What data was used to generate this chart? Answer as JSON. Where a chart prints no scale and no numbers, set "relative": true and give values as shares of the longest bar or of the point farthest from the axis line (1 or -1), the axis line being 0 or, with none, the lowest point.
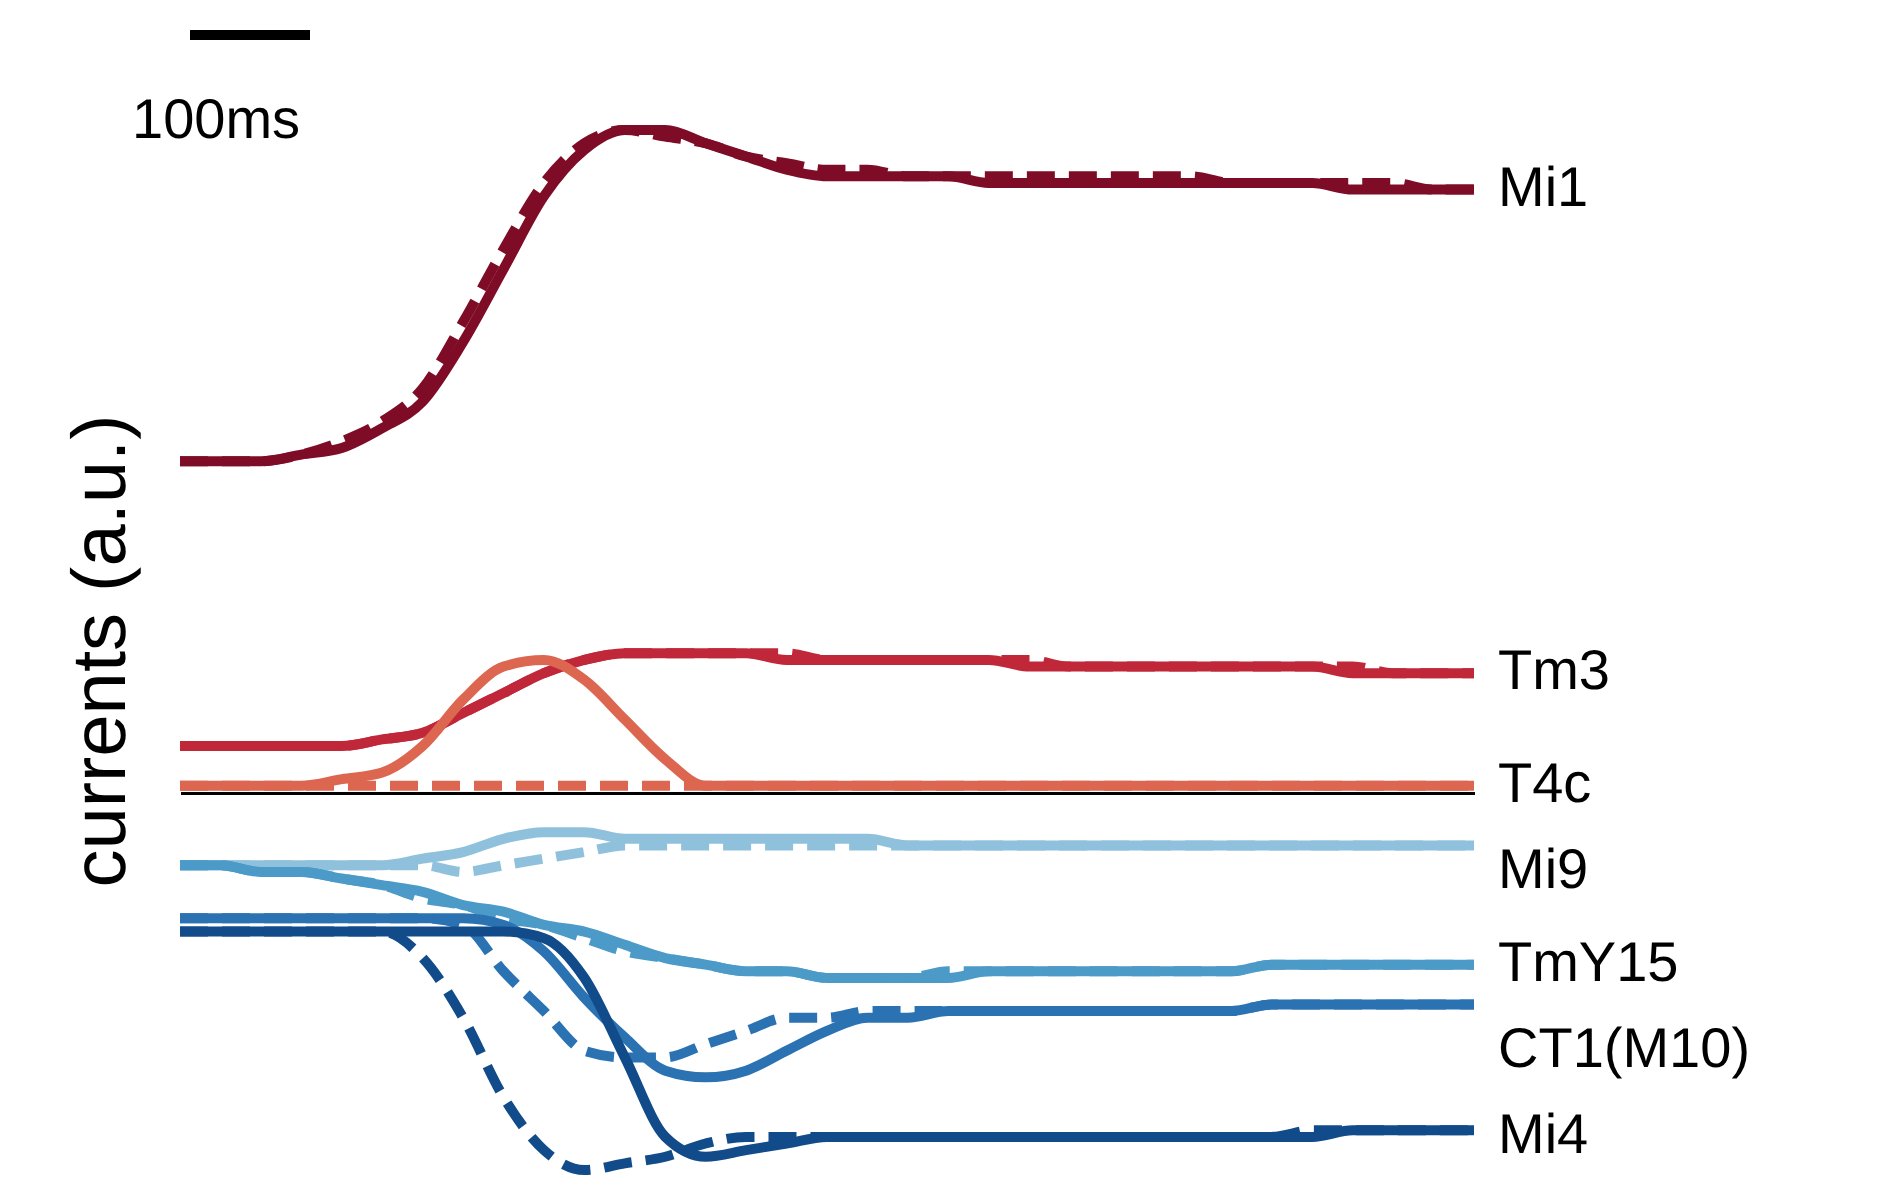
{
  "chart_data": {
    "type": "line",
    "relative": true,
    "ylabel": "currents (a.u.)",
    "annotations": [
      "100ms"
    ],
    "categories": [
      null,
      null,
      null,
      null,
      null,
      null,
      null,
      null,
      null,
      null,
      null,
      null,
      null,
      null,
      null,
      null,
      null,
      null,
      null,
      null,
      null,
      null,
      null,
      null,
      null,
      null,
      null,
      null,
      null,
      null,
      null,
      null,
      null
    ],
    "series": [
      {
        "name": "Mi1",
        "color": "#7f0c27",
        "line_style": "solid",
        "values": [
          0.5,
          0.5,
          0.5,
          0.51,
          0.52,
          0.55,
          0.59,
          0.68,
          0.79,
          0.9,
          0.97,
          1,
          1,
          0.98,
          0.96,
          0.94,
          0.93,
          0.93,
          0.93,
          0.93,
          0.92,
          0.92,
          0.92,
          0.92,
          0.92,
          0.92,
          0.92,
          0.92,
          0.92,
          0.91,
          0.91,
          0.91,
          0.91
        ]
      },
      {
        "color": "#7f0c27",
        "line_style": "dashed",
        "values": [
          0.5,
          0.5,
          0.5,
          0.51,
          0.53,
          0.56,
          0.61,
          0.71,
          0.82,
          0.92,
          0.98,
          1,
          0.99,
          0.98,
          0.96,
          0.95,
          0.94,
          0.94,
          0.93,
          0.93,
          0.93,
          0.93,
          0.93,
          0.93,
          0.93,
          0.93,
          0.92,
          0.92,
          0.92,
          0.92,
          0.92,
          0.91,
          0.91
        ]
      },
      {
        "name": "Tm3",
        "color": "#c0283a",
        "line_style": "solid",
        "values": [
          0.07,
          0.07,
          0.07,
          0.07,
          0.07,
          0.08,
          0.09,
          0.12,
          0.15,
          0.18,
          0.2,
          0.21,
          0.21,
          0.21,
          0.21,
          0.2,
          0.2,
          0.2,
          0.2,
          0.2,
          0.2,
          0.19,
          0.19,
          0.19,
          0.19,
          0.19,
          0.19,
          0.19,
          0.19,
          0.18,
          0.18,
          0.18,
          0.18
        ]
      },
      {
        "color": "#c0283a",
        "line_style": "dashed",
        "values": [
          0.07,
          0.07,
          0.07,
          0.07,
          0.07,
          0.08,
          0.09,
          0.12,
          0.15,
          0.18,
          0.2,
          0.21,
          0.21,
          0.21,
          0.21,
          0.21,
          0.2,
          0.2,
          0.2,
          0.2,
          0.2,
          0.2,
          0.19,
          0.19,
          0.19,
          0.19,
          0.19,
          0.19,
          0.19,
          0.19,
          0.18,
          0.18,
          0.18
        ]
      },
      {
        "name": "T4c",
        "color": "#dc6650",
        "line_style": "solid",
        "values": [
          0.01,
          0.01,
          0.01,
          0.01,
          0.02,
          0.03,
          0.07,
          0.14,
          0.19,
          0.2,
          0.17,
          0.11,
          0.05,
          0.01,
          0.01,
          0.01,
          0.01,
          0.01,
          0.01,
          0.01,
          0.01,
          0.01,
          0.01,
          0.01,
          0.01,
          0.01,
          0.01,
          0.01,
          0.01,
          0.01,
          0.01,
          0.01,
          0.01
        ]
      },
      {
        "color": "#dc6650",
        "line_style": "dashed",
        "values": [
          0.01,
          0.01,
          0.01,
          0.01,
          0.01,
          0.01,
          0.01,
          0.01,
          0.01,
          0.01,
          0.01,
          0.01,
          0.01,
          0.01,
          0.01,
          0.01,
          0.01,
          0.01,
          0.01,
          0.01,
          0.01,
          0.01,
          0.01,
          0.01,
          0.01,
          0.01,
          0.01,
          0.01,
          0.01,
          0.01,
          0.01,
          0.01,
          0.01
        ]
      },
      {
        "name": "Mi9",
        "color": "#8fc1dd",
        "line_style": "solid",
        "values": [
          -0.11,
          -0.11,
          -0.11,
          -0.11,
          -0.11,
          -0.11,
          -0.1,
          -0.09,
          -0.07,
          -0.06,
          -0.06,
          -0.07,
          -0.07,
          -0.07,
          -0.07,
          -0.07,
          -0.07,
          -0.07,
          -0.08,
          -0.08,
          -0.08,
          -0.08,
          -0.08,
          -0.08,
          -0.08,
          -0.08,
          -0.08,
          -0.08,
          -0.08,
          -0.08,
          -0.08,
          -0.08,
          -0.08
        ]
      },
      {
        "color": "#8fc1dd",
        "line_style": "dashed",
        "values": [
          -0.11,
          -0.11,
          -0.11,
          -0.11,
          -0.11,
          -0.11,
          -0.11,
          -0.12,
          -0.11,
          -0.1,
          -0.09,
          -0.08,
          -0.08,
          -0.08,
          -0.08,
          -0.08,
          -0.08,
          -0.08,
          -0.08,
          -0.08,
          -0.08,
          -0.08,
          -0.08,
          -0.08,
          -0.08,
          -0.08,
          -0.08,
          -0.08,
          -0.08,
          -0.08,
          -0.08,
          -0.08,
          -0.08
        ]
      },
      {
        "name": "TmY15",
        "color": "#4b9ac7",
        "line_style": "solid",
        "values": [
          -0.11,
          -0.11,
          -0.12,
          -0.12,
          -0.13,
          -0.14,
          -0.15,
          -0.17,
          -0.18,
          -0.2,
          -0.21,
          -0.23,
          -0.25,
          -0.26,
          -0.27,
          -0.27,
          -0.28,
          -0.28,
          -0.28,
          -0.28,
          -0.27,
          -0.27,
          -0.27,
          -0.27,
          -0.27,
          -0.27,
          -0.27,
          -0.26,
          -0.26,
          -0.26,
          -0.26,
          -0.26,
          -0.26
        ]
      },
      {
        "color": "#4b9ac7",
        "line_style": "dashed",
        "values": [
          -0.11,
          -0.11,
          -0.12,
          -0.12,
          -0.13,
          -0.14,
          -0.16,
          -0.17,
          -0.19,
          -0.2,
          -0.22,
          -0.24,
          -0.25,
          -0.26,
          -0.27,
          -0.27,
          -0.28,
          -0.28,
          -0.28,
          -0.27,
          -0.27,
          -0.27,
          -0.27,
          -0.27,
          -0.27,
          -0.27,
          -0.27,
          -0.26,
          -0.26,
          -0.26,
          -0.26,
          -0.26,
          -0.26
        ]
      },
      {
        "name": "CT1(M10)",
        "color": "#2b72b3",
        "line_style": "solid",
        "values": [
          -0.19,
          -0.19,
          -0.19,
          -0.19,
          -0.19,
          -0.19,
          -0.19,
          -0.19,
          -0.2,
          -0.24,
          -0.31,
          -0.37,
          -0.42,
          -0.43,
          -0.42,
          -0.39,
          -0.36,
          -0.34,
          -0.34,
          -0.33,
          -0.33,
          -0.33,
          -0.33,
          -0.33,
          -0.33,
          -0.33,
          -0.33,
          -0.32,
          -0.32,
          -0.32,
          -0.32,
          -0.32,
          -0.32
        ]
      },
      {
        "color": "#2b72b3",
        "line_style": "dashed",
        "values": [
          -0.19,
          -0.19,
          -0.19,
          -0.19,
          -0.19,
          -0.19,
          -0.19,
          -0.2,
          -0.27,
          -0.33,
          -0.39,
          -0.4,
          -0.4,
          -0.38,
          -0.36,
          -0.34,
          -0.34,
          -0.33,
          -0.33,
          -0.33,
          -0.33,
          -0.33,
          -0.33,
          -0.33,
          -0.33,
          -0.33,
          -0.33,
          -0.32,
          -0.32,
          -0.32,
          -0.32,
          -0.32,
          -0.32
        ]
      },
      {
        "name": "Mi4",
        "color": "#124b8a",
        "line_style": "solid",
        "values": [
          -0.21,
          -0.21,
          -0.21,
          -0.21,
          -0.21,
          -0.21,
          -0.21,
          -0.21,
          -0.21,
          -0.22,
          -0.28,
          -0.4,
          -0.52,
          -0.55,
          -0.54,
          -0.53,
          -0.52,
          -0.52,
          -0.52,
          -0.52,
          -0.52,
          -0.52,
          -0.52,
          -0.52,
          -0.52,
          -0.52,
          -0.52,
          -0.52,
          -0.52,
          -0.51,
          -0.51,
          -0.51,
          -0.51
        ]
      },
      {
        "color": "#124b8a",
        "line_style": "dashed",
        "values": [
          -0.21,
          -0.21,
          -0.21,
          -0.21,
          -0.21,
          -0.21,
          -0.25,
          -0.34,
          -0.46,
          -0.54,
          -0.57,
          -0.56,
          -0.55,
          -0.53,
          -0.52,
          -0.52,
          -0.52,
          -0.52,
          -0.52,
          -0.52,
          -0.52,
          -0.52,
          -0.52,
          -0.52,
          -0.52,
          -0.52,
          -0.52,
          -0.52,
          -0.51,
          -0.51,
          -0.51,
          -0.51,
          -0.51
        ]
      }
    ]
  }
}
